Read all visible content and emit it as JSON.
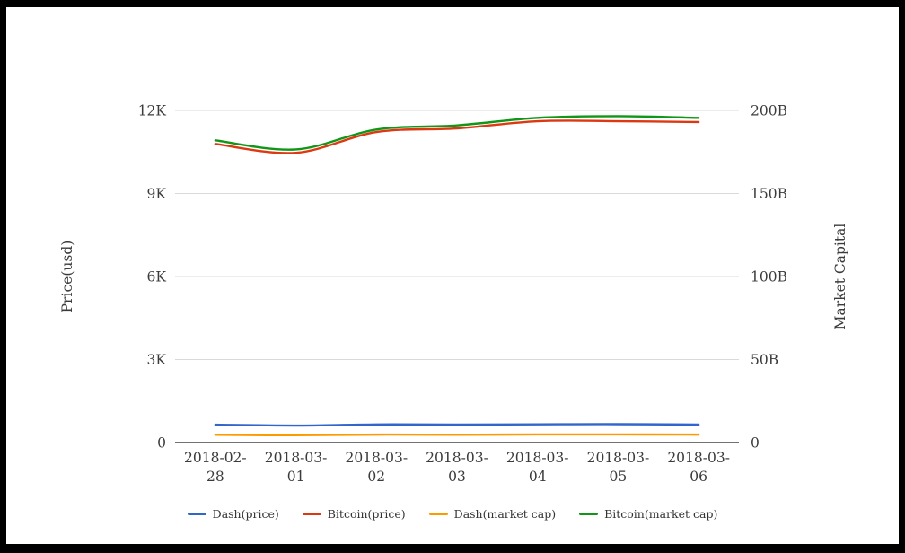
{
  "page": {
    "background": "#ffffff",
    "frame_color": "#000000",
    "text_color": "#3b3b3b",
    "gridline_color": "#d9d9d9",
    "zero_line_color": "#444444"
  },
  "chart_data": {
    "type": "line",
    "title": "",
    "x_axis_label": "",
    "x": [
      "2018-02-28",
      "2018-03-01",
      "2018-03-02",
      "2018-03-03",
      "2018-03-04",
      "2018-03-05",
      "2018-03-06"
    ],
    "grid": {
      "horizontal": true,
      "vertical": false
    },
    "legend_position": "bottom",
    "axes": {
      "left": {
        "title": "Price(usd)",
        "min": 0,
        "max": 12000,
        "ticks": [
          {
            "value": 0,
            "label": "0"
          },
          {
            "value": 3000,
            "label": "3K"
          },
          {
            "value": 6000,
            "label": "6K"
          },
          {
            "value": 9000,
            "label": "9K"
          },
          {
            "value": 12000,
            "label": "12K"
          }
        ]
      },
      "right": {
        "title": "Market Capital",
        "unit": "billion USD",
        "min": 0,
        "max": 200,
        "ticks": [
          {
            "value": 0,
            "label": "0"
          },
          {
            "value": 50,
            "label": "50B"
          },
          {
            "value": 100,
            "label": "100B"
          },
          {
            "value": 150,
            "label": "150B"
          },
          {
            "value": 200,
            "label": "200B"
          }
        ]
      }
    },
    "series": [
      {
        "name": "Dash(price)",
        "axis": "left",
        "color": "#3366cc",
        "values": [
          645,
          615,
          655,
          650,
          660,
          665,
          650
        ]
      },
      {
        "name": "Bitcoin(price)",
        "axis": "left",
        "color": "#dc3912",
        "values": [
          10790,
          10470,
          11220,
          11350,
          11610,
          11610,
          11580
        ]
      },
      {
        "name": "Dash(market cap)",
        "axis": "right",
        "color": "#ff9900",
        "values": [
          4.7,
          4.4,
          4.8,
          4.7,
          4.9,
          4.9,
          4.8
        ]
      },
      {
        "name": "Bitcoin(market cap)",
        "axis": "right",
        "color": "#109618",
        "values": [
          182,
          176.5,
          188.5,
          191,
          195.5,
          196.5,
          195.5
        ]
      }
    ]
  }
}
